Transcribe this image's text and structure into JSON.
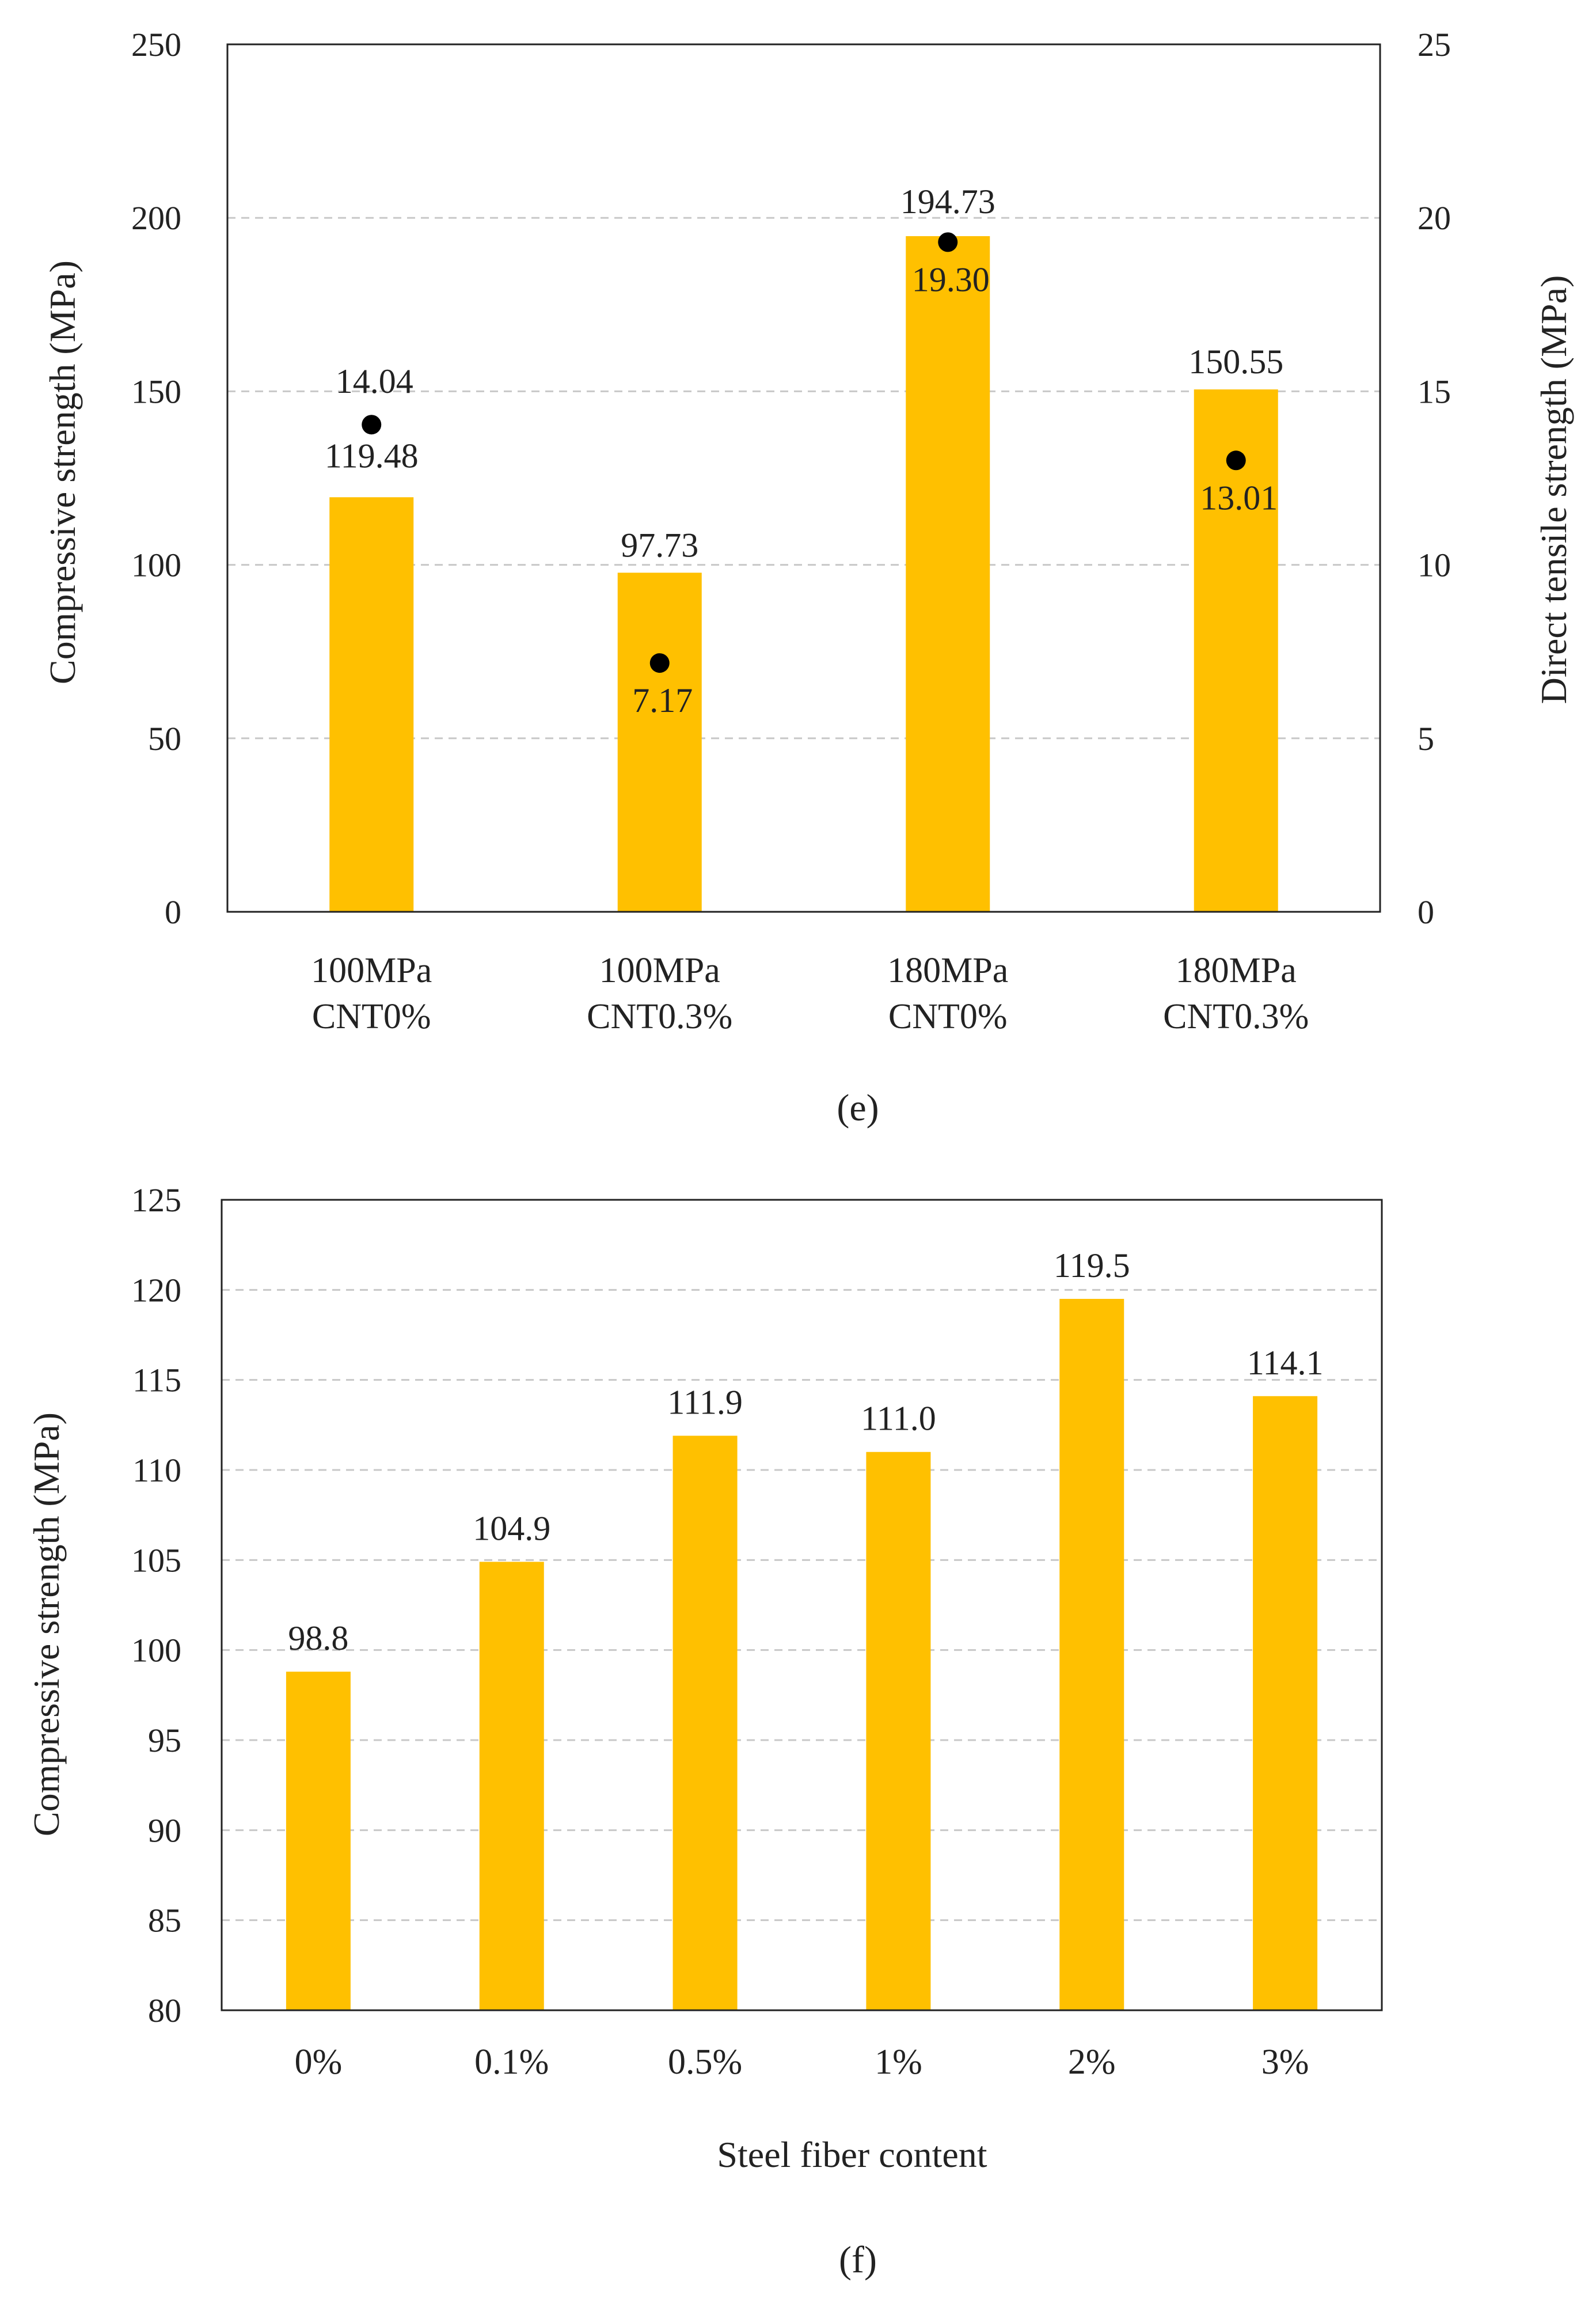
{
  "chart_data": [
    {
      "type": "bar",
      "panel_caption": "(e)",
      "categories": [
        [
          "100MPa",
          "CNT0%"
        ],
        [
          "100MPa",
          "CNT0.3%"
        ],
        [
          "180MPa",
          "CNT0%"
        ],
        [
          "180MPa",
          "CNT0.3%"
        ]
      ],
      "series": [
        {
          "name": "Compressive strength",
          "kind": "bar",
          "axis": "left",
          "values": [
            119.48,
            97.73,
            194.73,
            150.55
          ],
          "labels": [
            "119.48",
            "97.73",
            "194.73",
            "150.55"
          ]
        },
        {
          "name": "Direct tensile strength",
          "kind": "point",
          "axis": "right",
          "values": [
            14.04,
            7.17,
            19.3,
            13.01
          ],
          "labels": [
            "14.04",
            "7.17",
            "19.30",
            "13.01"
          ]
        }
      ],
      "ylabel": "Compressive strength (MPa)",
      "y2label": "Direct tensile strength (MPa)",
      "ylim": [
        0,
        250
      ],
      "y2lim": [
        0,
        25
      ],
      "yticks": [
        "0",
        "50",
        "100",
        "150",
        "200",
        "250"
      ],
      "y2ticks": [
        "0",
        "5",
        "10",
        "15",
        "20",
        "25"
      ],
      "grid": true,
      "colors": {
        "bar": "#FFC000",
        "point": "#000000",
        "grid": "#c8c8c8"
      }
    },
    {
      "type": "bar",
      "panel_caption": "(f)",
      "categories": [
        "0%",
        "0.1%",
        "0.5%",
        "1%",
        "2%",
        "3%"
      ],
      "series": [
        {
          "name": "Compressive strength",
          "values": [
            98.8,
            104.9,
            111.9,
            111.0,
            119.5,
            114.1
          ],
          "labels": [
            "98.8",
            "104.9",
            "111.9",
            "111.0",
            "119.5",
            "114.1"
          ]
        }
      ],
      "xlabel": "Steel fiber content",
      "ylabel": "Compressive strength (MPa)",
      "ylim": [
        80,
        125
      ],
      "yticks": [
        "80",
        "85",
        "90",
        "95",
        "100",
        "105",
        "110",
        "115",
        "120",
        "125"
      ],
      "grid": true,
      "colors": {
        "bar": "#FFC000",
        "grid": "#c8c8c8"
      }
    }
  ]
}
